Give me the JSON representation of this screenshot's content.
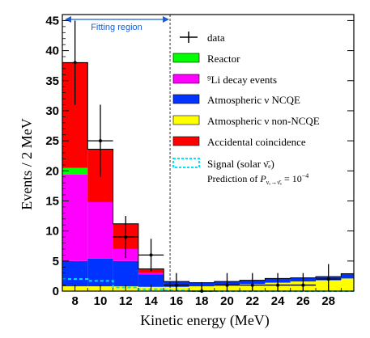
{
  "chart_data": {
    "type": "bar",
    "stacked": true,
    "xlabel": "Kinetic energy (MeV)",
    "ylabel": "Events / 2 MeV",
    "xlim": [
      7,
      30
    ],
    "ylim": [
      0,
      46
    ],
    "xticks": [
      "8",
      "10",
      "12",
      "14",
      "16",
      "18",
      "20",
      "22",
      "24",
      "26",
      "28"
    ],
    "xtick_values": [
      8,
      10,
      12,
      14,
      16,
      18,
      20,
      22,
      24,
      26,
      28
    ],
    "yticks": [
      "0",
      "5",
      "10",
      "15",
      "20",
      "25",
      "30",
      "35",
      "40",
      "45"
    ],
    "ytick_values": [
      0,
      5,
      10,
      15,
      20,
      25,
      30,
      35,
      40,
      45
    ],
    "bins": [
      {
        "lo": 7,
        "hi": 9
      },
      {
        "lo": 9,
        "hi": 11
      },
      {
        "lo": 11,
        "hi": 13
      },
      {
        "lo": 13,
        "hi": 15
      },
      {
        "lo": 15,
        "hi": 17
      },
      {
        "lo": 17,
        "hi": 19
      },
      {
        "lo": 19,
        "hi": 21
      },
      {
        "lo": 21,
        "hi": 23
      },
      {
        "lo": 23,
        "hi": 25
      },
      {
        "lo": 25,
        "hi": 27
      },
      {
        "lo": 27,
        "hi": 29
      },
      {
        "lo": 29,
        "hi": 30
      }
    ],
    "series": [
      {
        "name": "Atmospheric ν non-NCQE",
        "color": "#ffff00",
        "values": [
          0.8,
          0.8,
          0.8,
          0.7,
          0.7,
          0.8,
          1.0,
          1.2,
          1.4,
          1.6,
          1.8,
          2.1
        ]
      },
      {
        "name": "Atmospheric ν NCQE",
        "color": "#0033ff",
        "values": [
          4.2,
          4.6,
          4.2,
          2.1,
          0.9,
          0.6,
          0.6,
          0.6,
          0.7,
          0.6,
          0.6,
          0.8
        ]
      },
      {
        "name": "⁹Li decay events",
        "color": "#ff00ff",
        "values": [
          14.4,
          9.4,
          2.0,
          0.2,
          0,
          0,
          0,
          0,
          0,
          0,
          0,
          0
        ]
      },
      {
        "name": "Reactor",
        "color": "#00ff00",
        "values": [
          1.1,
          0,
          0,
          0,
          0,
          0,
          0,
          0,
          0,
          0,
          0,
          0
        ]
      },
      {
        "name": "Accidental coincidence",
        "color": "#ff0000",
        "values": [
          17.5,
          8.8,
          4.2,
          0.7,
          0,
          0,
          0,
          0,
          0,
          0,
          0,
          0
        ]
      }
    ],
    "signal": {
      "name": "Signal (solar ν̄ₑ)",
      "color": "#00e5ff",
      "values": [
        2.0,
        1.7,
        0.6,
        0.3,
        0.1,
        0,
        0,
        0,
        0,
        0,
        0,
        0
      ]
    },
    "data": {
      "name": "data",
      "x": [
        8,
        10,
        12,
        14,
        16,
        18,
        20,
        22,
        24,
        26,
        28
      ],
      "y": [
        38,
        25,
        9,
        6,
        1,
        0,
        1,
        1,
        1,
        1,
        2
      ],
      "err": [
        7.0,
        6.0,
        3.5,
        2.7,
        2.0,
        1.5,
        2.0,
        2.0,
        2.0,
        2.0,
        2.5
      ]
    },
    "fitting_region": {
      "label": "Fitting region",
      "from": 7,
      "to": 15.5
    },
    "annotation_prefix": "Prediction of ",
    "annotation_P": "P",
    "annotation_subscript": "νₑ→ν̄ₑ",
    "annotation_suffix": " = 10",
    "annotation_exponent": "−4"
  }
}
